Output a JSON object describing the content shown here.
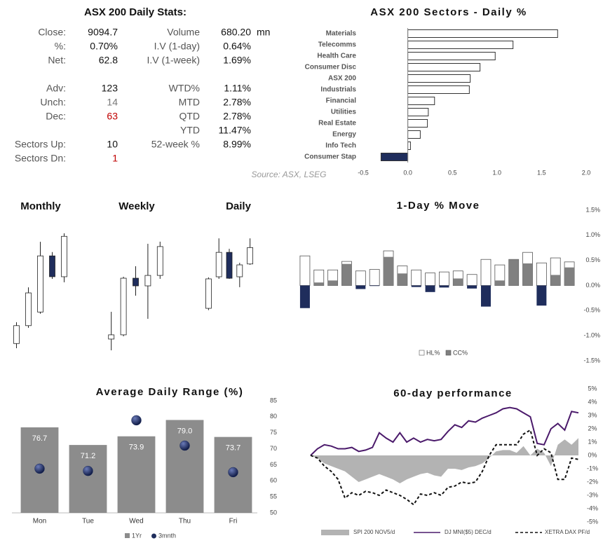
{
  "stats": {
    "title": "ASX 200 Daily Stats:",
    "left": [
      {
        "label": "Close:",
        "value": "9094.7"
      },
      {
        "label": "%:",
        "value": "0.70%"
      },
      {
        "label": "Net:",
        "value": "62.8"
      },
      {
        "label": "Adv:",
        "value": "123"
      },
      {
        "label": "Unch:",
        "value": "14",
        "color": "#777777"
      },
      {
        "label": "Dec:",
        "value": "63",
        "color": "#c00000"
      },
      {
        "label": "Sectors Up:",
        "value": "10"
      },
      {
        "label": "Sectors Dn:",
        "value": "1",
        "color": "#c00000"
      }
    ],
    "right": [
      {
        "label": "Volume",
        "value": "680.20",
        "unit": "mn"
      },
      {
        "label": "I.V (1-day)",
        "value": "0.64%"
      },
      {
        "label": "I.V (1-week)",
        "value": "1.69%"
      },
      {
        "label": "WTD%",
        "value": "1.11%"
      },
      {
        "label": "MTD",
        "value": "2.78%"
      },
      {
        "label": "QTD",
        "value": "2.78%"
      },
      {
        "label": "YTD",
        "value": "11.47%"
      },
      {
        "label": "52-week %",
        "value": "8.99%"
      }
    ],
    "source": "Source: ASX, LSEG"
  },
  "chart_data": [
    {
      "type": "bar",
      "horizontal": true,
      "title": "ASX 200 Sectors - Daily %",
      "categories": [
        "Materials",
        "Telecomms",
        "Health Care",
        "Consumer Disc",
        "ASX 200",
        "Industrials",
        "Financial",
        "Utilities",
        "Real Estate",
        "Energy",
        "Info Tech",
        "Consumer Stap"
      ],
      "values": [
        1.68,
        1.18,
        0.98,
        0.81,
        0.7,
        0.69,
        0.3,
        0.23,
        0.22,
        0.14,
        0.03,
        -0.3
      ],
      "color": "#ffffff",
      "negative_color": "#1f2d5c",
      "edge_color": "#333333",
      "xlim": [
        -0.5,
        2.0
      ],
      "xticks": [
        -0.5,
        {
          "value": 0,
          "label": "0.0"
        },
        0.5,
        {
          "value": 1,
          "label": "1.0"
        },
        1.5,
        {
          "value": 2,
          "label": "2.0"
        }
      ]
    },
    {
      "type": "candlestick",
      "title": "Monthly",
      "up_color": "#ffffff",
      "down_color": "#1f2d5c",
      "ylim": [
        7900,
        9300
      ],
      "open": [
        7980,
        8190,
        8350,
        9010,
        8765
      ],
      "high": [
        8230,
        8640,
        9175,
        9055,
        9275
      ],
      "low": [
        7925,
        8165,
        8330,
        8740,
        8700
      ],
      "close": [
        8190,
        8575,
        9010,
        8765,
        9240
      ]
    },
    {
      "type": "candlestick",
      "title": "Weekly",
      "up_color": "#ffffff",
      "down_color": "#1f2d5c",
      "ylim": [
        8400,
        9300
      ],
      "open": [
        8485,
        8517,
        8945,
        8887,
        8966
      ],
      "high": [
        8691,
        8956,
        9035,
        9205,
        9221
      ],
      "low": [
        8400,
        8506,
        8813,
        8638,
        8940
      ],
      "close": [
        8517,
        8945,
        8887,
        8966,
        9184
      ]
    },
    {
      "type": "candlestick",
      "title": "Daily",
      "up_color": "#ffffff",
      "down_color": "#1f2d5c",
      "ylim": [
        8750,
        9150
      ],
      "open": [
        8891,
        8997,
        9079,
        8997,
        9040
      ],
      "high": [
        8995,
        9126,
        9091,
        9044,
        9126
      ],
      "low": [
        8885,
        8990,
        8990,
        8962,
        9037
      ],
      "close": [
        8990,
        9079,
        8992,
        9037,
        9095
      ]
    },
    {
      "type": "bar",
      "title": "1-Day % Move",
      "categories": [
        null,
        null,
        null,
        null,
        null,
        null,
        null,
        null,
        null,
        null,
        null,
        null,
        null,
        null,
        null,
        null,
        null,
        null,
        null,
        null
      ],
      "series": [
        {
          "name": "HL%",
          "color": "#ffffff",
          "values": [
            0.59,
            0.31,
            0.31,
            0.48,
            0.29,
            0.32,
            0.69,
            0.39,
            0.31,
            0.25,
            0.27,
            0.29,
            0.22,
            0.52,
            0.41,
            0.52,
            0.66,
            0.45,
            0.55,
            0.47
          ]
        },
        {
          "name": "CC%",
          "color": "#808080",
          "negative_color": "#1f2d5c",
          "values": [
            -0.45,
            0.06,
            0.1,
            0.43,
            -0.07,
            -0.01,
            0.57,
            0.24,
            -0.03,
            -0.13,
            -0.04,
            0.14,
            -0.06,
            -0.42,
            0.1,
            0.52,
            0.44,
            -0.4,
            0.21,
            0.36
          ]
        }
      ],
      "edge_color": "#555555",
      "ylim": [
        -1.5,
        1.5
      ],
      "yticks": [
        {
          "value": 1.5,
          "label": "1.5%"
        },
        {
          "value": 1.0,
          "label": "1.0%"
        },
        {
          "value": 0.5,
          "label": "0.5%"
        },
        {
          "value": 0,
          "label": "0.0%"
        },
        {
          "value": -0.5,
          "label": "-0.5%"
        },
        {
          "value": -1.0,
          "label": "-1.0%"
        },
        {
          "value": -1.5,
          "label": "-1.5%"
        }
      ]
    },
    {
      "type": "combo",
      "title": "Average Daily Range (%)",
      "categories": [
        "Mon",
        "Tue",
        "Wed",
        "Thu",
        "Fri"
      ],
      "series": [
        {
          "name": "1Yr",
          "kind": "bar",
          "color": "#8c8c8c",
          "values": [
            76.7,
            71.2,
            73.9,
            79.0,
            73.7
          ],
          "value_labels": [
            "76.7",
            "71.2",
            "73.9",
            "79.0",
            "73.7"
          ]
        },
        {
          "name": "3mnth",
          "kind": "dot",
          "color": "#1f2d5c",
          "values": [
            63.8,
            63.1,
            78.9,
            71.0,
            62.7
          ]
        }
      ],
      "ylim": [
        50,
        85
      ],
      "yticks": [
        50,
        55,
        60,
        65,
        70,
        75,
        80,
        85
      ]
    },
    {
      "type": "line",
      "title": "60-day performance",
      "categories": [
        null,
        null,
        null,
        null,
        null,
        null,
        null,
        null,
        null,
        null,
        null,
        null,
        null,
        null,
        null,
        null,
        null,
        null,
        null,
        null,
        null,
        null,
        null,
        null,
        null,
        null,
        null,
        null,
        null,
        null,
        null,
        null,
        null,
        null,
        null,
        null,
        null,
        null,
        null,
        null
      ],
      "series": [
        {
          "name": "SPI 200 NOV5/d",
          "style": "area",
          "color": "#b3b3b3",
          "values": [
            0.0,
            -0.2,
            -0.6,
            -0.8,
            -1.0,
            -1.2,
            -1.6,
            -2.0,
            -1.8,
            -1.6,
            -1.4,
            -1.6,
            -1.8,
            -2.1,
            -1.8,
            -1.6,
            -1.4,
            -1.3,
            -1.5,
            -1.6,
            -1.0,
            -1.0,
            -1.1,
            -0.9,
            -0.8,
            -0.6,
            -0.2,
            0.3,
            0.4,
            0.4,
            0.2,
            0.7,
            0.0,
            0.5,
            0.2,
            -0.8,
            0.8,
            1.2,
            0.8,
            1.3
          ]
        },
        {
          "name": "DJ MNI($5) DEC/d",
          "style": "solid",
          "color": "#4b1a6b",
          "values": [
            0.0,
            0.5,
            0.8,
            0.7,
            0.5,
            0.5,
            0.6,
            0.3,
            0.4,
            0.6,
            1.7,
            1.3,
            1.0,
            1.7,
            1.0,
            1.3,
            1.0,
            1.2,
            1.1,
            1.2,
            1.8,
            2.3,
            2.1,
            2.6,
            2.5,
            2.8,
            3.0,
            3.2,
            3.5,
            3.6,
            3.5,
            3.2,
            2.9,
            0.9,
            0.8,
            2.0,
            2.4,
            1.9,
            3.3,
            3.2
          ]
        },
        {
          "name": "XETRA DAX PF/d",
          "style": "dashed",
          "color": "#111111",
          "values": [
            0.0,
            -0.2,
            -0.8,
            -1.2,
            -1.8,
            -3.2,
            -2.8,
            -3.0,
            -2.7,
            -2.8,
            -3.0,
            -2.6,
            -2.8,
            -3.0,
            -3.3,
            -3.7,
            -2.9,
            -3.0,
            -2.8,
            -3.0,
            -2.4,
            -2.3,
            -2.0,
            -2.1,
            -2.0,
            -1.2,
            0.0,
            0.8,
            0.8,
            0.8,
            0.8,
            1.6,
            1.9,
            0.0,
            0.5,
            0.2,
            -1.8,
            -1.8,
            -0.2,
            -0.3
          ]
        }
      ],
      "ylim": [
        -5,
        5
      ],
      "yticks": [
        {
          "value": 5,
          "label": "5%"
        },
        {
          "value": 4,
          "label": "4%"
        },
        {
          "value": 3,
          "label": "3%"
        },
        {
          "value": 2,
          "label": "2%"
        },
        {
          "value": 1,
          "label": "1%"
        },
        {
          "value": 0,
          "label": "0%"
        },
        {
          "value": -1,
          "label": "-1%"
        },
        {
          "value": -2,
          "label": "-2%"
        },
        {
          "value": -3,
          "label": "-3%"
        },
        {
          "value": -4,
          "label": "-4%"
        },
        {
          "value": -5,
          "label": "-5%"
        }
      ]
    }
  ]
}
